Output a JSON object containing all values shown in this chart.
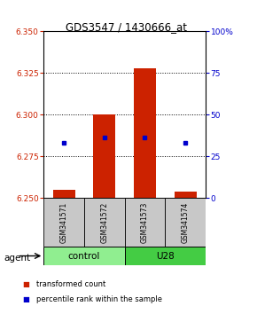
{
  "title": "GDS3547 / 1430666_at",
  "samples": [
    "GSM341571",
    "GSM341572",
    "GSM341573",
    "GSM341574"
  ],
  "bar_values": [
    6.255,
    6.3,
    6.328,
    6.254
  ],
  "bar_base": 6.25,
  "perc_pct": [
    33,
    36,
    36,
    33
  ],
  "ylim_left": [
    6.25,
    6.35
  ],
  "ylim_right": [
    0,
    100
  ],
  "yticks_left": [
    6.25,
    6.275,
    6.3,
    6.325,
    6.35
  ],
  "yticks_right": [
    0,
    25,
    50,
    75,
    100
  ],
  "ytick_labels_right": [
    "0",
    "25",
    "50",
    "75",
    "100%"
  ],
  "grid_ticks": [
    6.275,
    6.3,
    6.325
  ],
  "bar_color": "#CC2200",
  "percentile_color": "#0000CC",
  "left_color": "#CC2200",
  "right_color": "#0000CC",
  "sample_box_color": "#C8C8C8",
  "control_color": "#90EE90",
  "u28_color": "#44CC44",
  "title_fontsize": 9,
  "legend_items": [
    {
      "color": "#CC2200",
      "label": "transformed count"
    },
    {
      "color": "#0000CC",
      "label": "percentile rank within the sample"
    }
  ]
}
